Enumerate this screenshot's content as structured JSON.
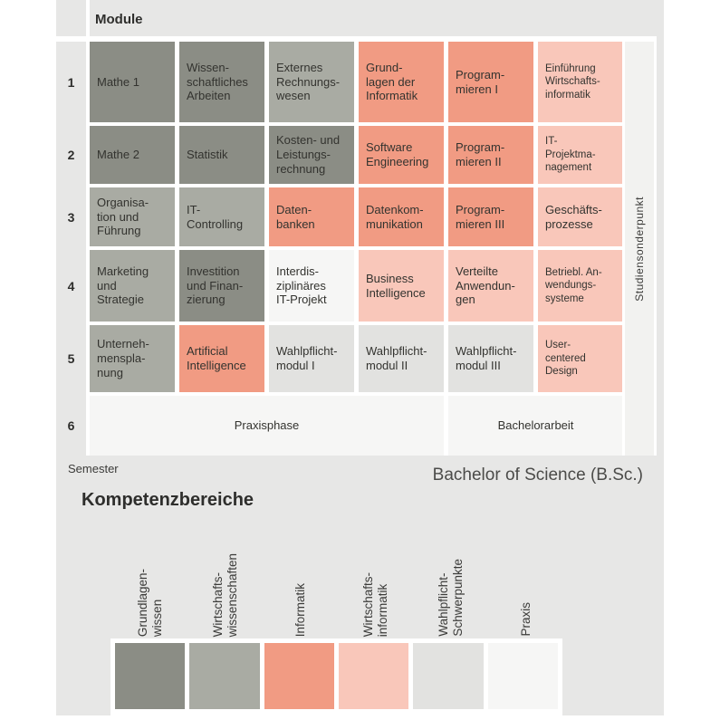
{
  "table": {
    "module_header": "Module",
    "semester_label": "Semester",
    "degree_label": "Bachelor of Science (B.Sc.)",
    "side_column": "Studiensonderpunkt"
  },
  "competence": {
    "title": "Kompetenzbereiche"
  },
  "categories": {
    "grundlagenwissen": {
      "label": "Grundlagen-\nwissen",
      "color": "#8b8d85"
    },
    "wirtschaftswissenschaften": {
      "label": "Wirtschafts-\nwissenschaften",
      "color": "#a9aba3"
    },
    "informatik": {
      "label": "Informatik",
      "color": "#f19b83"
    },
    "wirtschaftsinformatik": {
      "label": "Wirtschafts-\ninformatik",
      "color": "#f9c7ba"
    },
    "wahlpflicht": {
      "label": "Wahlpflicht-\nSchwerpunkte",
      "color": "#e2e2e0"
    },
    "praxis": {
      "label": "Praxis",
      "color": "#f6f6f5"
    }
  },
  "legend_order": [
    "grundlagenwissen",
    "wirtschaftswissenschaften",
    "informatik",
    "wirtschaftsinformatik",
    "wahlpflicht",
    "praxis"
  ],
  "semesters": [
    {
      "number": "1",
      "modules": [
        {
          "name": "Mathe 1",
          "category": "grundlagenwissen"
        },
        {
          "name": "Wissen-\nschaftliches\nArbeiten",
          "category": "grundlagenwissen"
        },
        {
          "name": "Externes\nRechnungs-\nwesen",
          "category": "wirtschaftswissenschaften"
        },
        {
          "name": "Grund-\nlagen der\nInformatik",
          "category": "informatik"
        },
        {
          "name": "Program-\nmieren I",
          "category": "informatik"
        },
        {
          "name": "Einführung\nWirtschafts-\ninformatik",
          "category": "wirtschaftsinformatik",
          "small": true
        }
      ]
    },
    {
      "number": "2",
      "modules": [
        {
          "name": "Mathe 2",
          "category": "grundlagenwissen"
        },
        {
          "name": "Statistik",
          "category": "grundlagenwissen"
        },
        {
          "name": "Kosten- und\nLeistungs-\nrechnung",
          "category": "grundlagenwissen"
        },
        {
          "name": "Software\nEngineering",
          "category": "informatik"
        },
        {
          "name": "Program-\nmieren II",
          "category": "informatik"
        },
        {
          "name": "IT-\nProjektma-\nnagement",
          "category": "wirtschaftsinformatik",
          "small": true
        }
      ]
    },
    {
      "number": "3",
      "modules": [
        {
          "name": "Organisa-\ntion und\nFührung",
          "category": "wirtschaftswissenschaften"
        },
        {
          "name": "IT-\nControlling",
          "category": "wirtschaftswissenschaften"
        },
        {
          "name": "Daten-\nbanken",
          "category": "informatik"
        },
        {
          "name": "Datenkom-\nmunikation",
          "category": "informatik"
        },
        {
          "name": "Program-\nmieren III",
          "category": "informatik"
        },
        {
          "name": "Geschäfts-\nprozesse",
          "category": "wirtschaftsinformatik"
        }
      ]
    },
    {
      "number": "4",
      "modules": [
        {
          "name": "Marketing\nund\nStrategie",
          "category": "wirtschaftswissenschaften"
        },
        {
          "name": "Investition\nund Finan-\nzierung",
          "category": "grundlagenwissen"
        },
        {
          "name": "Interdis-\nziplinäres\nIT-Projekt",
          "category": "praxis"
        },
        {
          "name": "Business\nIntelligence",
          "category": "wirtschaftsinformatik"
        },
        {
          "name": "Verteilte\nAnwendun-\ngen",
          "category": "wirtschaftsinformatik"
        },
        {
          "name": "Betriebl. An-\nwendungs-\nsysteme",
          "category": "wirtschaftsinformatik",
          "small": true
        }
      ]
    },
    {
      "number": "5",
      "modules": [
        {
          "name": "Unterneh-\nmenspla-\nnung",
          "category": "wirtschaftswissenschaften"
        },
        {
          "name": "Artificial\nIntelligence",
          "category": "informatik"
        },
        {
          "name": "Wahlpflicht-\nmodul I",
          "category": "wahlpflicht"
        },
        {
          "name": "Wahlpflicht-\nmodul II",
          "category": "wahlpflicht"
        },
        {
          "name": "Wahlpflicht-\nmodul III",
          "category": "wahlpflicht"
        },
        {
          "name": "User-\ncentered\nDesign",
          "category": "wirtschaftsinformatik",
          "small": true
        }
      ]
    },
    {
      "number": "6",
      "modules": [
        {
          "name": "Praxisphase",
          "category": "praxis",
          "span": 4,
          "center": true
        },
        {
          "name": "Bachelorarbeit",
          "category": "praxis",
          "span": 2,
          "center": true
        }
      ]
    }
  ]
}
